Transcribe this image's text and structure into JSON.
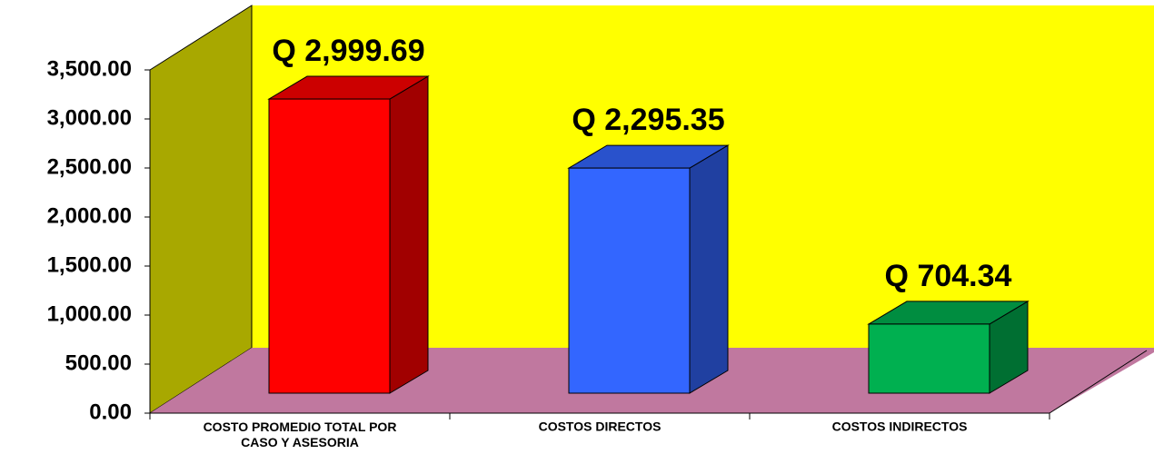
{
  "chart_data": {
    "type": "bar3d",
    "categories": [
      "COSTO PROMEDIO TOTAL POR CASO Y ASESORIA",
      "COSTOS DIRECTOS",
      "COSTOS INDIRECTOS"
    ],
    "values": [
      2999.69,
      2295.35,
      704.34
    ],
    "value_labels": [
      "Q 2,999.69",
      "Q 2,295.35",
      "Q 704.34"
    ],
    "colors": [
      "#ff0000",
      "#3366ff",
      "#00b050"
    ],
    "ylim": [
      0,
      3500
    ],
    "yticks": [
      {
        "value": 0,
        "label": "0.00"
      },
      {
        "value": 500,
        "label": "500.00"
      },
      {
        "value": 1000,
        "label": "1,000.00"
      },
      {
        "value": 1500,
        "label": "1,500.00"
      },
      {
        "value": 2000,
        "label": "2,000.00"
      },
      {
        "value": 2500,
        "label": "2,500.00"
      },
      {
        "value": 3000,
        "label": "3,000.00"
      },
      {
        "value": 3500,
        "label": "3,500.00"
      }
    ]
  }
}
